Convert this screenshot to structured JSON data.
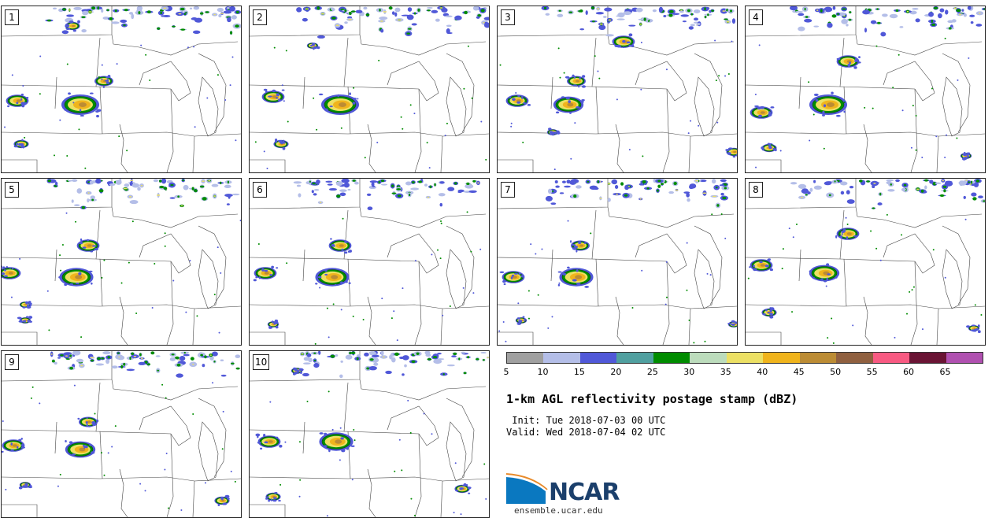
{
  "panels": [
    {
      "label": "1"
    },
    {
      "label": "2"
    },
    {
      "label": "3"
    },
    {
      "label": "4"
    },
    {
      "label": "5"
    },
    {
      "label": "6"
    },
    {
      "label": "7"
    },
    {
      "label": "8"
    },
    {
      "label": "9"
    },
    {
      "label": "10"
    }
  ],
  "colorbar": {
    "colors": [
      "#a0a0a0",
      "#b4bee8",
      "#5058d8",
      "#50a0a0",
      "#008c00",
      "#bcdcbc",
      "#ece064",
      "#f0b41c",
      "#bc8c34",
      "#906040",
      "#f85a82",
      "#6a1434",
      "#b050b0"
    ],
    "ticks": [
      "5",
      "10",
      "15",
      "20",
      "25",
      "30",
      "35",
      "40",
      "45",
      "50",
      "55",
      "60",
      "65"
    ]
  },
  "title": "1-km AGL reflectivity postage stamp (dBZ)",
  "init": " Init: Tue 2018-07-03 00 UTC",
  "valid": "Valid: Wed 2018-07-04 02 UTC",
  "logo": {
    "text": "NCAR",
    "site": "ensemble.ucar.edu"
  }
}
